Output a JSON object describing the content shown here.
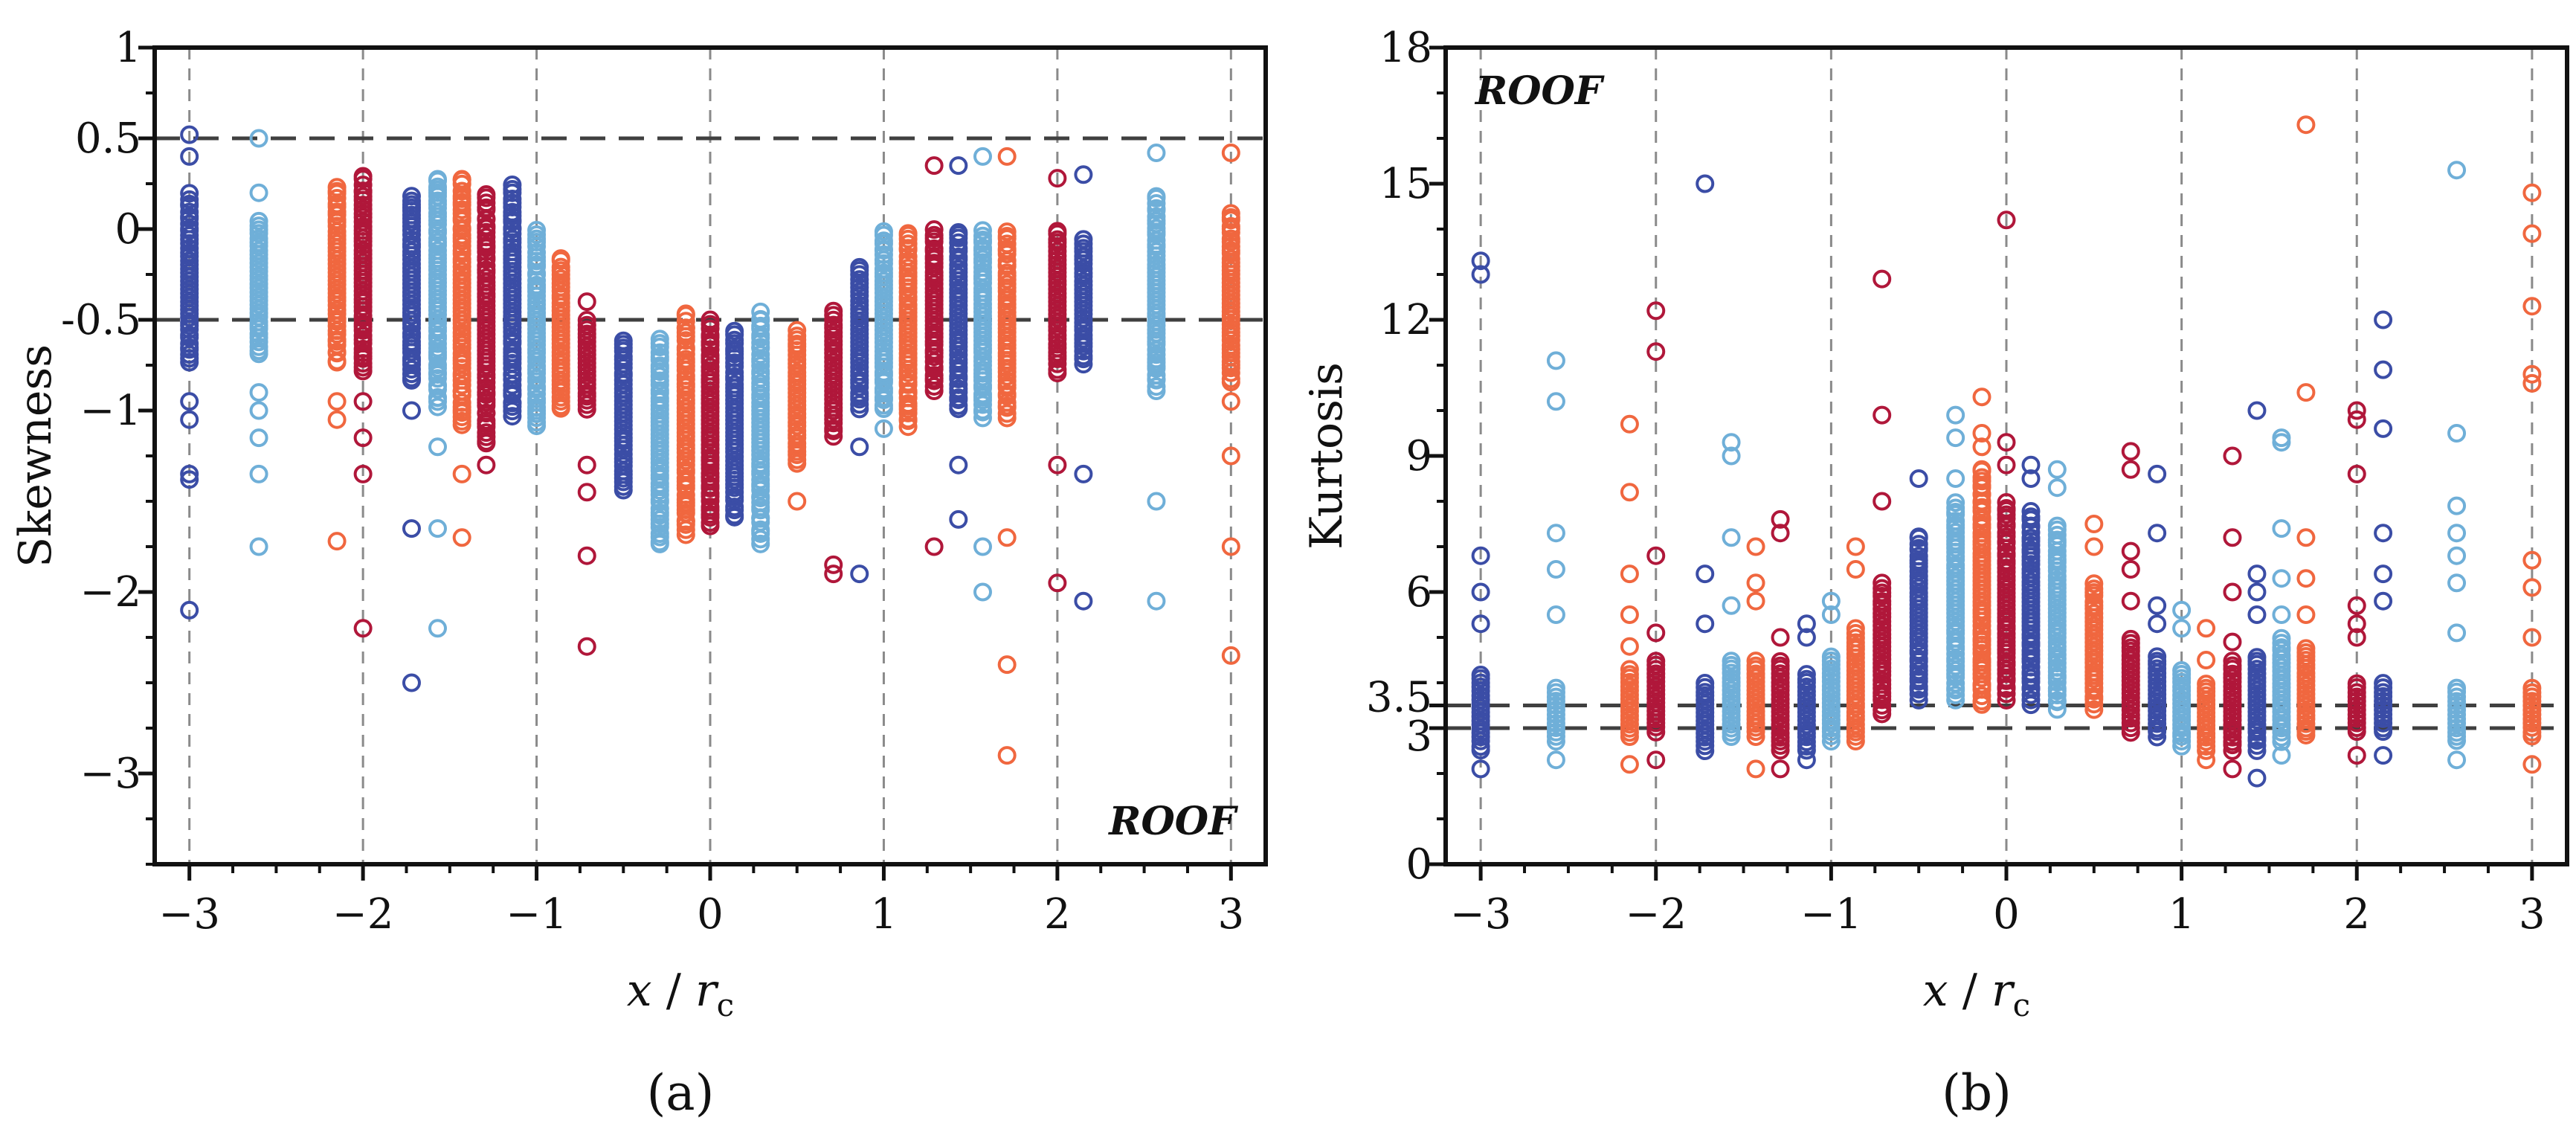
{
  "colors": {
    "dark_blue": "#3b4da6",
    "light_blue": "#6fafd8",
    "orange": "#f0673f",
    "dark_red": "#b0173a",
    "axis": "#111111",
    "grid": "#8a8a8a",
    "hline": "#404040"
  },
  "chart_data": [
    {
      "panel": "a",
      "caption": "(a)",
      "type": "scatter",
      "annotation": "ROOF",
      "annotation_position": "bottom-right",
      "xlabel": {
        "var": "x",
        "sep": " / ",
        "sub_base": "r",
        "sub": "c"
      },
      "ylabel": "Skewness",
      "xlim": [
        -3.2,
        3.2
      ],
      "ylim": [
        -3.5,
        1
      ],
      "xticks": [
        -3,
        -2,
        -1,
        0,
        1,
        2,
        3
      ],
      "xtick_labels": [
        "−3",
        "−2",
        "−1",
        "0",
        "1",
        "2",
        "3"
      ],
      "yticks": [
        1,
        0.5,
        0,
        -0.5,
        -1,
        -2,
        -3
      ],
      "ytick_labels": [
        "1",
        "0.5",
        "0",
        "-0.5",
        "−1",
        "−2",
        "−3"
      ],
      "vgrid_x": [
        -3,
        -2,
        -1,
        0,
        1,
        2,
        3
      ],
      "hlines": [
        0.5,
        -0.5
      ],
      "columns": [
        {
          "x": -3.0,
          "color": "dark_blue",
          "band": [
            -0.75,
            0.2
          ],
          "outliers": [
            0.52,
            0.4,
            -1.05,
            -1.35,
            -1.38,
            -2.1,
            -0.95
          ]
        },
        {
          "x": -2.6,
          "color": "light_blue",
          "band": [
            -0.7,
            0.05
          ],
          "outliers": [
            0.5,
            0.2,
            -1.0,
            -1.15,
            -1.35,
            -1.75,
            -0.9
          ]
        },
        {
          "x": -2.15,
          "color": "orange",
          "band": [
            -0.75,
            0.25
          ],
          "outliers": [
            -0.95,
            -1.05,
            -1.72
          ]
        },
        {
          "x": -2.0,
          "color": "dark_red",
          "band": [
            -0.8,
            0.3
          ],
          "outliers": [
            -0.95,
            -1.15,
            -1.35,
            -2.2
          ]
        },
        {
          "x": -1.72,
          "color": "dark_blue",
          "band": [
            -0.85,
            0.2
          ],
          "outliers": [
            -1.0,
            -1.65,
            -2.5
          ]
        },
        {
          "x": -1.57,
          "color": "light_blue",
          "band": [
            -1.0,
            0.3
          ],
          "outliers": [
            -1.2,
            -1.65,
            -2.2
          ]
        },
        {
          "x": -1.43,
          "color": "orange",
          "band": [
            -1.1,
            0.3
          ],
          "outliers": [
            -1.35,
            -1.7
          ]
        },
        {
          "x": -1.29,
          "color": "dark_red",
          "band": [
            -1.2,
            0.2
          ],
          "outliers": [
            -1.3
          ]
        },
        {
          "x": -1.14,
          "color": "dark_blue",
          "band": [
            -1.05,
            0.25
          ],
          "outliers": []
        },
        {
          "x": -1.0,
          "color": "light_blue",
          "band": [
            -1.1,
            0.0
          ],
          "outliers": []
        },
        {
          "x": -0.86,
          "color": "orange",
          "band": [
            -1.0,
            -0.15
          ],
          "outliers": []
        },
        {
          "x": -0.71,
          "color": "dark_red",
          "band": [
            -1.0,
            -0.5
          ],
          "outliers": [
            -0.4,
            -1.3,
            -1.45,
            -1.8,
            -2.3
          ]
        },
        {
          "x": -0.5,
          "color": "dark_blue",
          "band": [
            -1.45,
            -0.6
          ],
          "outliers": []
        },
        {
          "x": -0.29,
          "color": "light_blue",
          "band": [
            -1.75,
            -0.6
          ],
          "outliers": []
        },
        {
          "x": -0.14,
          "color": "orange",
          "band": [
            -1.7,
            -0.45
          ],
          "outliers": []
        },
        {
          "x": 0.0,
          "color": "dark_red",
          "band": [
            -1.65,
            -0.5
          ],
          "outliers": []
        },
        {
          "x": 0.14,
          "color": "dark_blue",
          "band": [
            -1.6,
            -0.55
          ],
          "outliers": []
        },
        {
          "x": 0.29,
          "color": "light_blue",
          "band": [
            -1.75,
            -0.45
          ],
          "outliers": []
        },
        {
          "x": 0.5,
          "color": "orange",
          "band": [
            -1.3,
            -0.55
          ],
          "outliers": [
            -1.5
          ]
        },
        {
          "x": 0.71,
          "color": "dark_red",
          "band": [
            -1.15,
            -0.45
          ],
          "outliers": [
            -1.85,
            -1.9
          ]
        },
        {
          "x": 0.86,
          "color": "dark_blue",
          "band": [
            -1.0,
            -0.2
          ],
          "outliers": [
            -1.2,
            -1.9
          ]
        },
        {
          "x": 1.0,
          "color": "light_blue",
          "band": [
            -1.0,
            0.0
          ],
          "outliers": [
            -1.1
          ]
        },
        {
          "x": 1.14,
          "color": "orange",
          "band": [
            -1.1,
            0.0
          ],
          "outliers": [
            -0.9
          ]
        },
        {
          "x": 1.29,
          "color": "dark_red",
          "band": [
            -0.9,
            0.0
          ],
          "outliers": [
            0.35,
            -1.75
          ]
        },
        {
          "x": 1.43,
          "color": "dark_blue",
          "band": [
            -1.0,
            0.0
          ],
          "outliers": [
            0.35,
            -1.3,
            -1.6
          ]
        },
        {
          "x": 1.57,
          "color": "light_blue",
          "band": [
            -1.05,
            0.0
          ],
          "outliers": [
            0.4,
            -1.75,
            -2.0
          ]
        },
        {
          "x": 1.71,
          "color": "orange",
          "band": [
            -1.05,
            0.0
          ],
          "outliers": [
            0.4,
            -1.7,
            -2.4,
            -2.9
          ]
        },
        {
          "x": 2.0,
          "color": "dark_red",
          "band": [
            -0.8,
            0.0
          ],
          "outliers": [
            0.28,
            -1.3,
            -1.95
          ]
        },
        {
          "x": 2.15,
          "color": "dark_blue",
          "band": [
            -0.75,
            -0.05
          ],
          "outliers": [
            0.3,
            -1.35,
            -2.05
          ]
        },
        {
          "x": 2.57,
          "color": "light_blue",
          "band": [
            -0.9,
            0.2
          ],
          "outliers": [
            0.42,
            -1.5,
            -2.05
          ]
        },
        {
          "x": 3.0,
          "color": "orange",
          "band": [
            -0.85,
            0.1
          ],
          "outliers": [
            0.42,
            -0.95,
            -1.25,
            -1.75,
            -2.35
          ]
        }
      ]
    },
    {
      "panel": "b",
      "caption": "(b)",
      "type": "scatter",
      "annotation": "ROOF",
      "annotation_position": "top-left",
      "xlabel": {
        "var": "x",
        "sep": " / ",
        "sub_base": "r",
        "sub": "c"
      },
      "ylabel": "Kurtosis",
      "xlim": [
        -3.2,
        3.2
      ],
      "ylim": [
        0,
        18
      ],
      "xticks": [
        -3,
        -2,
        -1,
        0,
        1,
        2,
        3
      ],
      "xtick_labels": [
        "−3",
        "−2",
        "−1",
        "0",
        "1",
        "2",
        "3"
      ],
      "yticks": [
        0,
        3,
        3.5,
        6,
        9,
        12,
        15,
        18
      ],
      "ytick_labels": [
        "0",
        "3",
        "3.5",
        "6",
        "9",
        "12",
        "15",
        "18"
      ],
      "vgrid_x": [
        -3,
        -2,
        -1,
        0,
        1,
        2,
        3
      ],
      "hlines": [
        3.5,
        3.0
      ],
      "columns": [
        {
          "x": -3.0,
          "color": "dark_blue",
          "band": [
            2.5,
            4.2
          ],
          "outliers": [
            5.3,
            6.0,
            6.8,
            13.0,
            13.3,
            2.1
          ]
        },
        {
          "x": -2.57,
          "color": "light_blue",
          "band": [
            2.7,
            3.9
          ],
          "outliers": [
            5.5,
            6.5,
            7.3,
            10.2,
            11.1,
            2.3
          ]
        },
        {
          "x": -2.15,
          "color": "orange",
          "band": [
            2.8,
            4.3
          ],
          "outliers": [
            4.8,
            5.5,
            6.4,
            8.2,
            9.7,
            2.2
          ]
        },
        {
          "x": -2.0,
          "color": "dark_red",
          "band": [
            2.9,
            4.5
          ],
          "outliers": [
            5.1,
            6.8,
            11.3,
            12.2,
            2.3
          ]
        },
        {
          "x": -1.72,
          "color": "dark_blue",
          "band": [
            2.6,
            4.0
          ],
          "outliers": [
            5.3,
            6.4,
            15.0,
            2.5
          ]
        },
        {
          "x": -1.57,
          "color": "light_blue",
          "band": [
            2.8,
            4.5
          ],
          "outliers": [
            5.7,
            7.2,
            9.0,
            9.3
          ]
        },
        {
          "x": -1.43,
          "color": "orange",
          "band": [
            2.8,
            4.5
          ],
          "outliers": [
            5.8,
            6.2,
            7.0,
            2.1
          ]
        },
        {
          "x": -1.29,
          "color": "dark_red",
          "band": [
            2.5,
            4.5
          ],
          "outliers": [
            5.0,
            7.3,
            7.6,
            2.1
          ]
        },
        {
          "x": -1.14,
          "color": "dark_blue",
          "band": [
            2.5,
            4.2
          ],
          "outliers": [
            5.0,
            5.3,
            2.3
          ]
        },
        {
          "x": -1.0,
          "color": "light_blue",
          "band": [
            2.7,
            4.6
          ],
          "outliers": [
            5.5,
            5.8
          ]
        },
        {
          "x": -0.86,
          "color": "orange",
          "band": [
            2.7,
            5.2
          ],
          "outliers": [
            6.5,
            7.0
          ]
        },
        {
          "x": -0.71,
          "color": "dark_red",
          "band": [
            3.3,
            6.2
          ],
          "outliers": [
            8.0,
            9.9,
            12.9
          ]
        },
        {
          "x": -0.5,
          "color": "dark_blue",
          "band": [
            3.6,
            7.3
          ],
          "outliers": [
            8.5
          ]
        },
        {
          "x": -0.29,
          "color": "light_blue",
          "band": [
            3.6,
            8.0
          ],
          "outliers": [
            8.5,
            9.4,
            9.9
          ]
        },
        {
          "x": -0.14,
          "color": "orange",
          "band": [
            3.5,
            8.8
          ],
          "outliers": [
            9.2,
            9.5,
            10.3
          ]
        },
        {
          "x": 0.0,
          "color": "dark_red",
          "band": [
            3.6,
            8.0
          ],
          "outliers": [
            8.8,
            9.3,
            14.2
          ]
        },
        {
          "x": 0.14,
          "color": "dark_blue",
          "band": [
            3.5,
            7.8
          ],
          "outliers": [
            8.5,
            8.8
          ]
        },
        {
          "x": 0.29,
          "color": "light_blue",
          "band": [
            3.4,
            7.5
          ],
          "outliers": [
            8.3,
            8.7
          ]
        },
        {
          "x": 0.5,
          "color": "orange",
          "band": [
            3.4,
            6.2
          ],
          "outliers": [
            7.0,
            7.5
          ]
        },
        {
          "x": 0.71,
          "color": "dark_red",
          "band": [
            2.9,
            5.0
          ],
          "outliers": [
            5.8,
            6.5,
            6.9,
            8.7,
            9.1
          ]
        },
        {
          "x": 0.86,
          "color": "dark_blue",
          "band": [
            2.8,
            4.6
          ],
          "outliers": [
            5.3,
            5.7,
            7.3,
            8.6
          ]
        },
        {
          "x": 1.0,
          "color": "light_blue",
          "band": [
            2.6,
            4.3
          ],
          "outliers": [
            5.2,
            5.6
          ]
        },
        {
          "x": 1.14,
          "color": "orange",
          "band": [
            2.5,
            4.0
          ],
          "outliers": [
            4.5,
            5.2,
            2.3
          ]
        },
        {
          "x": 1.29,
          "color": "dark_red",
          "band": [
            2.5,
            4.5
          ],
          "outliers": [
            4.9,
            6.0,
            7.2,
            9.0,
            2.1
          ]
        },
        {
          "x": 1.43,
          "color": "dark_blue",
          "band": [
            2.5,
            4.6
          ],
          "outliers": [
            5.5,
            6.0,
            6.4,
            10.0,
            1.9
          ]
        },
        {
          "x": 1.57,
          "color": "light_blue",
          "band": [
            2.7,
            5.0
          ],
          "outliers": [
            5.5,
            6.3,
            7.4,
            9.3,
            9.4,
            2.4
          ]
        },
        {
          "x": 1.71,
          "color": "orange",
          "band": [
            2.8,
            4.8
          ],
          "outliers": [
            5.5,
            6.3,
            7.2,
            10.4,
            16.3
          ]
        },
        {
          "x": 2.0,
          "color": "dark_red",
          "band": [
            2.9,
            4.0
          ],
          "outliers": [
            5.0,
            5.3,
            5.7,
            8.6,
            9.8,
            10.0,
            2.4
          ]
        },
        {
          "x": 2.15,
          "color": "dark_blue",
          "band": [
            2.9,
            4.0
          ],
          "outliers": [
            5.8,
            6.4,
            7.3,
            9.6,
            10.9,
            12.0,
            2.4
          ]
        },
        {
          "x": 2.57,
          "color": "light_blue",
          "band": [
            2.7,
            3.9
          ],
          "outliers": [
            5.1,
            6.2,
            6.8,
            7.3,
            7.9,
            9.5,
            15.3,
            2.3
          ]
        },
        {
          "x": 3.0,
          "color": "orange",
          "band": [
            2.8,
            3.9
          ],
          "outliers": [
            5.0,
            6.1,
            6.7,
            10.6,
            10.8,
            12.3,
            13.9,
            14.8,
            2.2
          ]
        }
      ]
    }
  ]
}
